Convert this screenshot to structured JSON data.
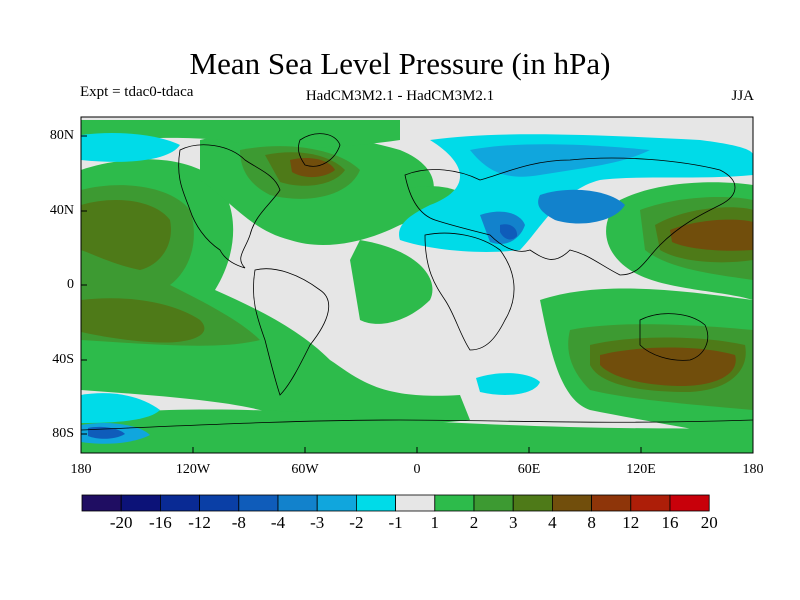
{
  "title": "Mean Sea Level Pressure (in hPa)",
  "experiment": "Expt = tdac0-tdaca",
  "model": "HadCM3M2.1 - HadCM3M2.1",
  "season": "JJA",
  "map": {
    "lat_labels": [
      "80N",
      "40N",
      "0",
      "40S",
      "80S"
    ],
    "lon_labels": [
      "180",
      "120W",
      "60W",
      "0",
      "60E",
      "120E",
      "180"
    ]
  },
  "colorbar": {
    "colors": [
      "#1f0d62",
      "#0c1278",
      "#092a94",
      "#0a3fa6",
      "#0f5cba",
      "#1282cc",
      "#10a6dd",
      "#00dbe8",
      "#e6e6e6",
      "#2dbb4b",
      "#3d9a32",
      "#4e7a18",
      "#714e0c",
      "#8e3509",
      "#ad1e08",
      "#c8000a"
    ],
    "labels": [
      "-20",
      "-16",
      "-12",
      "-8",
      "-4",
      "-3",
      "-2",
      "-1",
      "1",
      "2",
      "3",
      "4",
      "8",
      "12",
      "16",
      "20"
    ]
  },
  "palette": {
    "neutral": "#e6e6e6",
    "green_light": "#2dbb4b",
    "green_dark": "#3d9a32",
    "olive": "#4e7a18",
    "brown": "#714e0c",
    "cyan": "#00dbe8",
    "blue_light": "#10a6dd",
    "blue": "#1282cc",
    "navy": "#0c1278"
  }
}
